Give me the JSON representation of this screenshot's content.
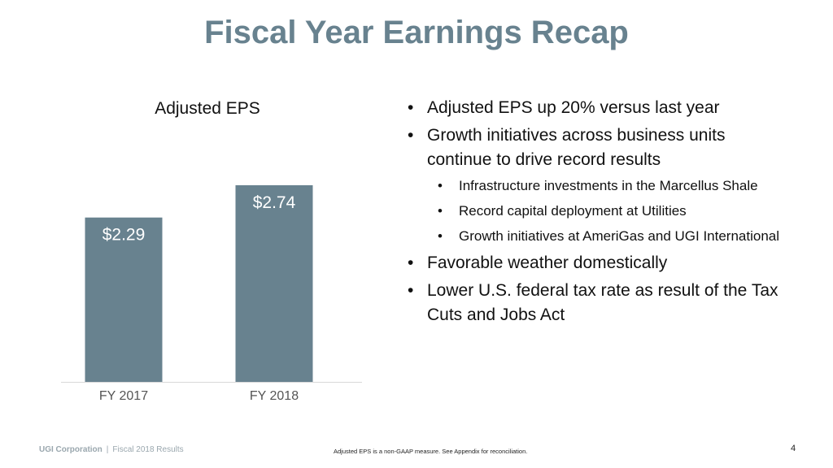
{
  "slide": {
    "title": "Fiscal Year Earnings Recap",
    "page_number": "4"
  },
  "chart_data": {
    "type": "bar",
    "title": "Adjusted EPS",
    "categories": [
      "FY 2017",
      "FY 2018"
    ],
    "values": [
      2.29,
      2.74
    ],
    "data_labels": [
      "$2.29",
      "$2.74"
    ],
    "xlabel": "",
    "ylabel": "",
    "ylim": [
      0,
      3.0
    ],
    "grid": false,
    "bar_color": "#68828f"
  },
  "bullets": [
    {
      "text": "Adjusted EPS up 20% versus last year",
      "sub": []
    },
    {
      "text": "Growth initiatives across business units continue to drive record results",
      "sub": [
        "Infrastructure investments in the Marcellus Shale",
        "Record capital deployment at Utilities",
        "Growth initiatives at AmeriGas and UGI International"
      ]
    },
    {
      "text": "Favorable weather domestically",
      "sub": []
    },
    {
      "text": "Lower U.S. federal tax rate as result of the Tax Cuts and Jobs Act",
      "sub": []
    }
  ],
  "footer": {
    "company": "UGI Corporation",
    "separator": "|",
    "subtitle": "Fiscal 2018 Results",
    "note": "Adjusted EPS is a non-GAAP measure. See Appendix for reconciliation."
  },
  "colors": {
    "accent": "#68828f",
    "footer_text": "#9aa7ae"
  }
}
